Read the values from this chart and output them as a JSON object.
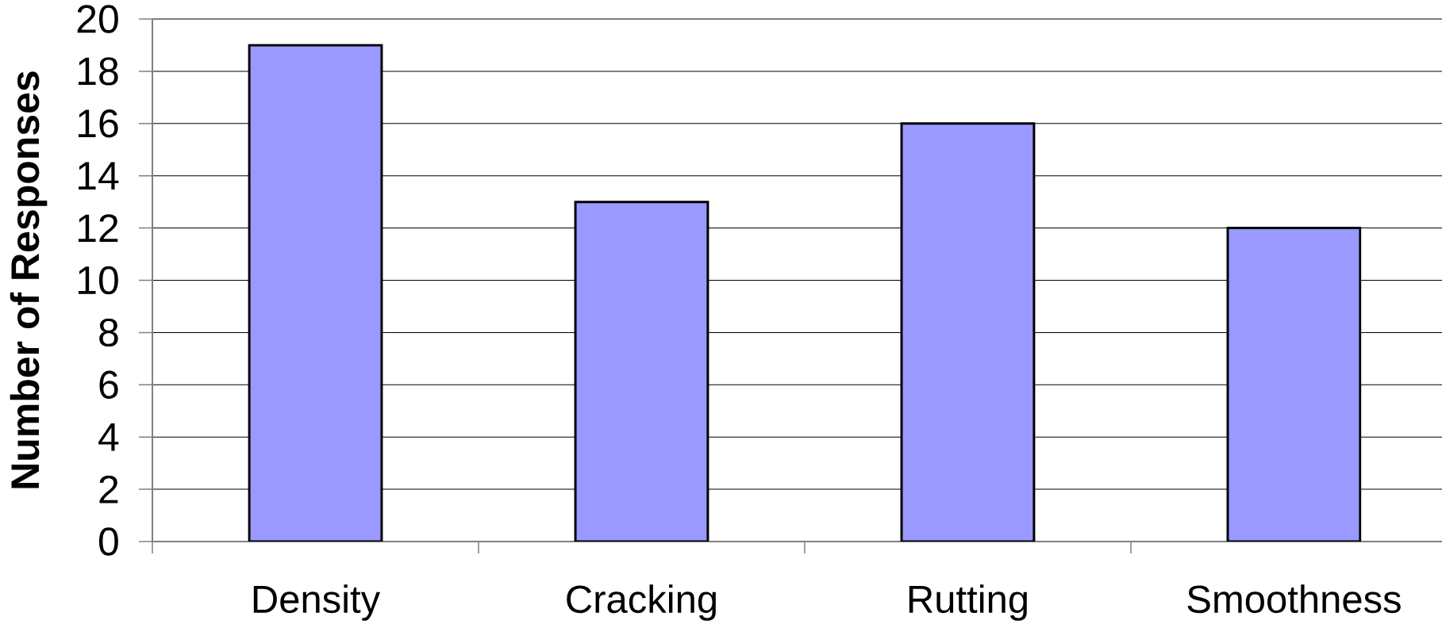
{
  "chart_data": {
    "type": "bar",
    "ylabel": "Number of Responses",
    "categories": [
      "Density",
      "Cracking",
      "Rutting",
      "Smoothness"
    ],
    "values": [
      19,
      13,
      16,
      12
    ],
    "color": "#9999ff",
    "ylim": [
      0,
      20
    ],
    "yticks": [
      0,
      2,
      4,
      6,
      8,
      10,
      12,
      14,
      16,
      18,
      20
    ],
    "grid": "y"
  }
}
